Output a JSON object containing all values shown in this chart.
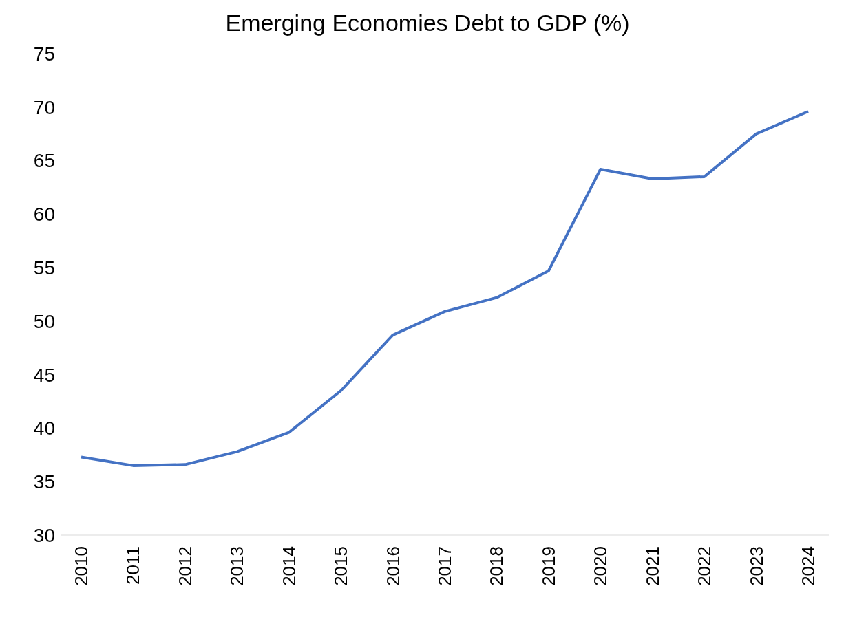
{
  "chart_data": {
    "type": "line",
    "title": "Emerging Economies Debt to GDP (%)",
    "categories": [
      "2010",
      "2011",
      "2012",
      "2013",
      "2014",
      "2015",
      "2016",
      "2017",
      "2018",
      "2019",
      "2020",
      "2021",
      "2022",
      "2023",
      "2024"
    ],
    "series": [
      {
        "color": "#4472c4",
        "values": [
          37.3,
          36.5,
          36.6,
          37.8,
          39.6,
          43.5,
          48.7,
          50.9,
          52.2,
          54.7,
          64.2,
          63.3,
          63.5,
          67.5,
          69.6
        ]
      }
    ],
    "ylim": [
      30,
      75
    ],
    "yticks": [
      30,
      35,
      40,
      45,
      50,
      55,
      60,
      65,
      70,
      75
    ],
    "grid": false,
    "legend": false,
    "marker": "none",
    "line_style": "solid"
  }
}
